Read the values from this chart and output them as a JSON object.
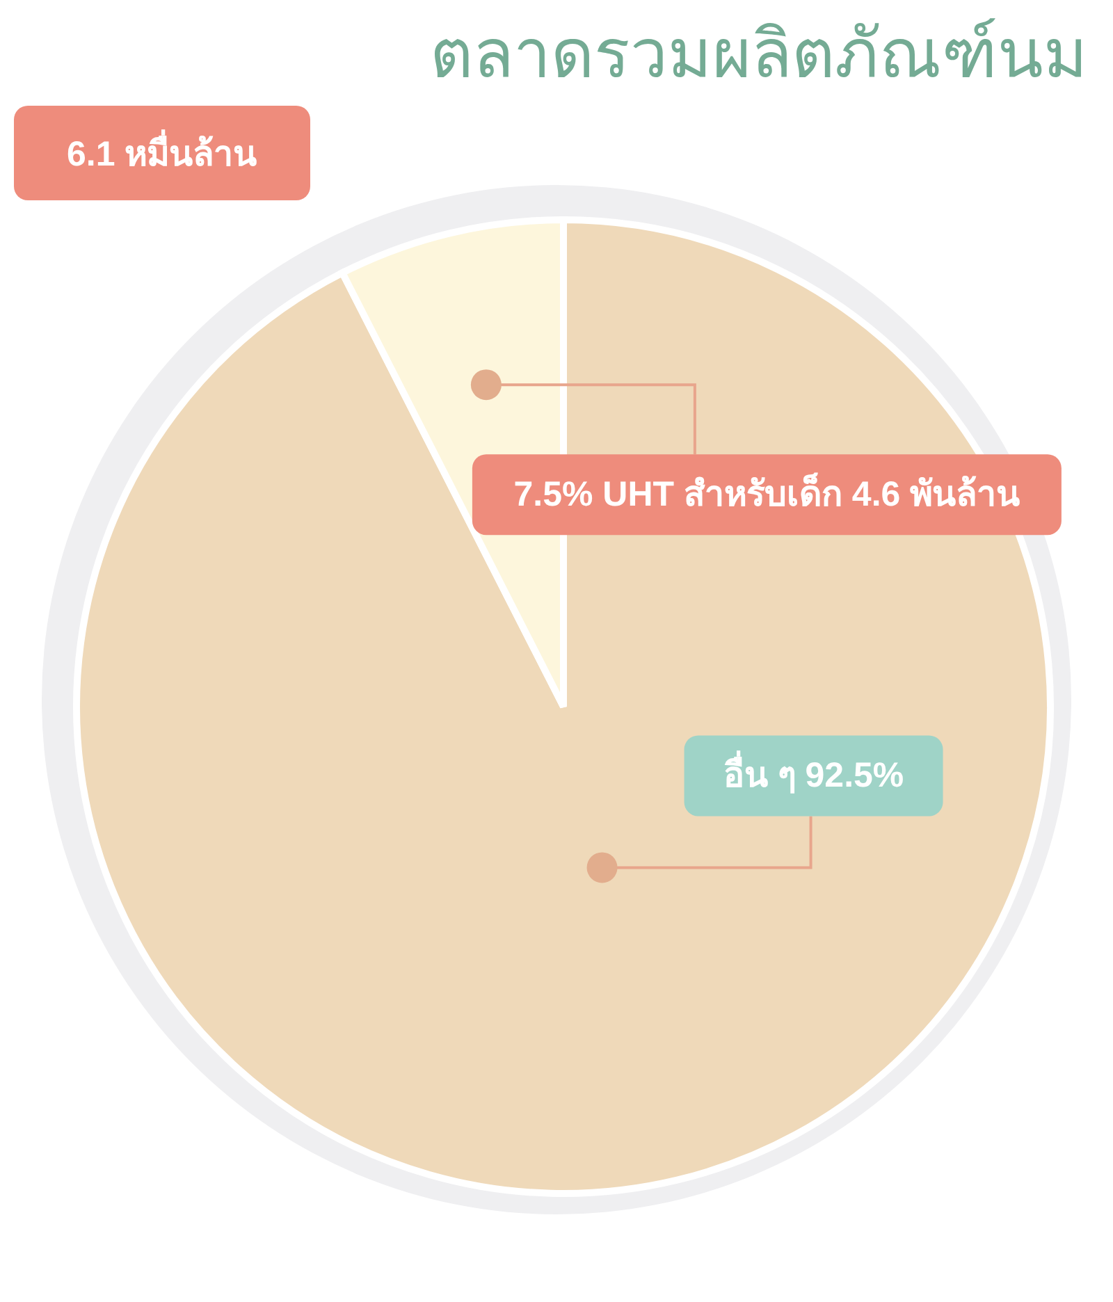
{
  "chart_data": {
    "type": "pie",
    "title": "ตลาดรวมผลิตภัณฑ์นม",
    "annotations": [
      "6.1 หมื่นล้าน",
      "4.6 พันล้าน"
    ],
    "categories": [
      "อื่น ๆ",
      "UHT สำหรับเด็ก"
    ],
    "values": [
      92.5,
      7.5
    ],
    "colors": [
      "#efd9b9",
      "#fdf6dc"
    ],
    "value_labels": [
      "92.5%",
      "7.5%"
    ],
    "legend": false
  }
}
